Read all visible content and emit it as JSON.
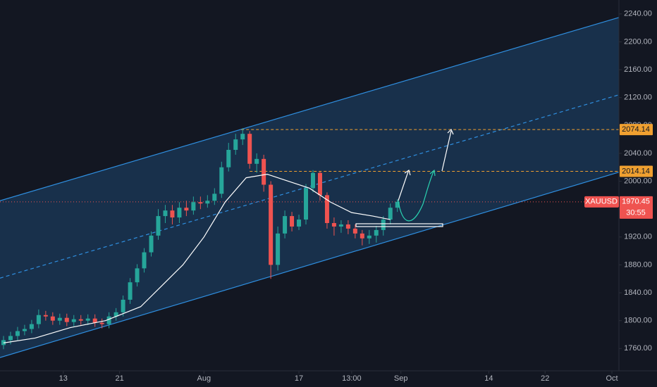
{
  "chart_data": {
    "type": "candlestick",
    "symbol": "XAUUSD",
    "last_price": 1970.45,
    "countdown": "30:55",
    "up_color": "#26a69a",
    "down_color": "#ef5350",
    "ylim": [
      1728,
      2260
    ],
    "yticks": [
      {
        "value": 1760,
        "label": "1760.00"
      },
      {
        "value": 1800,
        "label": "1800.00"
      },
      {
        "value": 1840,
        "label": "1840.00"
      },
      {
        "value": 1880,
        "label": "1880.00"
      },
      {
        "value": 1920,
        "label": "1920.00"
      },
      {
        "value": 1960,
        "label": "1960.00"
      },
      {
        "value": 2000,
        "label": "2000.00"
      },
      {
        "value": 2040,
        "label": "2040.00"
      },
      {
        "value": 2080,
        "label": "2080.00"
      },
      {
        "value": 2120,
        "label": "2120.00"
      },
      {
        "value": 2160,
        "label": "2160.00"
      },
      {
        "value": 2200,
        "label": "2200.00"
      },
      {
        "value": 2240,
        "label": "2240.00"
      }
    ],
    "xlim": [
      0,
      176
    ],
    "xticks": [
      {
        "value": 18,
        "label": "13"
      },
      {
        "value": 34,
        "label": "21"
      },
      {
        "value": 58,
        "label": "Aug"
      },
      {
        "value": 85,
        "label": "17"
      },
      {
        "value": 100,
        "label": "13:00"
      },
      {
        "value": 114,
        "label": "Sep"
      },
      {
        "value": 139,
        "label": "14"
      },
      {
        "value": 155,
        "label": "22"
      },
      {
        "value": 174,
        "label": "Oct"
      }
    ],
    "candles": {
      "x": [
        1,
        3,
        5,
        7,
        9,
        11,
        13,
        15,
        17,
        19,
        21,
        23,
        25,
        27,
        29,
        31,
        33,
        35,
        37,
        39,
        41,
        43,
        45,
        47,
        49,
        51,
        53,
        55,
        57,
        59,
        61,
        63,
        65,
        67,
        69,
        71,
        73,
        75,
        77,
        79,
        81,
        83,
        85,
        87,
        89,
        91,
        93,
        95,
        97,
        99,
        101,
        103,
        105,
        107,
        109,
        111,
        113
      ],
      "open": [
        1765,
        1772,
        1778,
        1785,
        1788,
        1795,
        1808,
        1806,
        1800,
        1804,
        1798,
        1802,
        1800,
        1803,
        1797,
        1795,
        1806,
        1812,
        1830,
        1855,
        1875,
        1898,
        1922,
        1950,
        1958,
        1948,
        1962,
        1958,
        1970,
        1968,
        1972,
        1982,
        2020,
        2045,
        2060,
        2068,
        2025,
        2032,
        1995,
        1880,
        1925,
        1950,
        1935,
        1945,
        1990,
        2012,
        1980,
        1940,
        1935,
        1938,
        1932,
        1925,
        1918,
        1922,
        1930,
        1945,
        1962
      ],
      "high": [
        1778,
        1784,
        1791,
        1794,
        1801,
        1816,
        1814,
        1812,
        1810,
        1810,
        1808,
        1808,
        1809,
        1809,
        1803,
        1812,
        1818,
        1836,
        1861,
        1881,
        1904,
        1928,
        1960,
        1966,
        1966,
        1970,
        1972,
        1978,
        1978,
        1980,
        1990,
        2028,
        2055,
        2068,
        2076,
        2072,
        2040,
        2038,
        2000,
        1935,
        1958,
        1956,
        1952,
        1996,
        2016,
        2014,
        1984,
        1948,
        1944,
        1944,
        1938,
        1930,
        1930,
        1936,
        1950,
        1968,
        1974
      ],
      "low": [
        1759,
        1766,
        1772,
        1779,
        1782,
        1789,
        1800,
        1794,
        1794,
        1792,
        1792,
        1794,
        1794,
        1791,
        1789,
        1789,
        1800,
        1806,
        1824,
        1849,
        1869,
        1892,
        1916,
        1940,
        1938,
        1940,
        1950,
        1952,
        1960,
        1962,
        1966,
        1976,
        2014,
        2038,
        2052,
        2018,
        2012,
        1985,
        1860,
        1872,
        1918,
        1928,
        1930,
        1938,
        1984,
        1972,
        1932,
        1922,
        1926,
        1924,
        1918,
        1908,
        1910,
        1912,
        1922,
        1938,
        1956
      ],
      "close": [
        1772,
        1778,
        1785,
        1788,
        1795,
        1808,
        1806,
        1800,
        1804,
        1798,
        1802,
        1800,
        1803,
        1797,
        1795,
        1806,
        1812,
        1830,
        1855,
        1875,
        1898,
        1922,
        1950,
        1958,
        1948,
        1962,
        1958,
        1970,
        1968,
        1972,
        1982,
        2020,
        2045,
        2060,
        2068,
        2025,
        2032,
        1995,
        1880,
        1925,
        1950,
        1935,
        1945,
        1990,
        2012,
        1980,
        1940,
        1935,
        1938,
        1932,
        1925,
        1918,
        1922,
        1930,
        1945,
        1962,
        1970.45
      ]
    },
    "ma": {
      "color": "#ffffff",
      "x": [
        1,
        10,
        20,
        30,
        40,
        46,
        52,
        58,
        64,
        70,
        76,
        82,
        88,
        94,
        100,
        106,
        111
      ],
      "values": [
        1768,
        1775,
        1790,
        1800,
        1820,
        1850,
        1880,
        1920,
        1970,
        2005,
        2010,
        2000,
        1990,
        1970,
        1955,
        1950,
        1945
      ]
    },
    "channel": {
      "color": "#2f8fe0",
      "upper": [
        1972,
        2235
      ],
      "middle": [
        1861,
        2124
      ],
      "lower": [
        1747,
        2013
      ]
    },
    "levels": [
      {
        "value": 2074.14,
        "x_start": 68.6,
        "color": "#f0a030"
      },
      {
        "value": 2014.14,
        "x_start": 71,
        "color": "#f0a030"
      }
    ]
  }
}
